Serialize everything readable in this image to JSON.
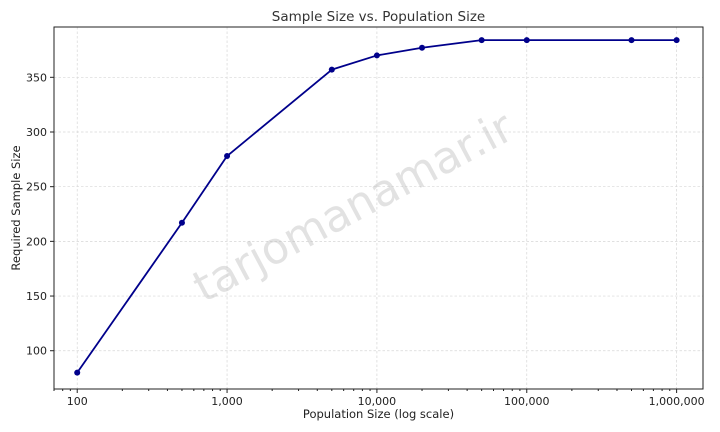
{
  "chart_data": {
    "type": "line",
    "title": "Sample Size vs. Population Size",
    "xlabel": "Population Size (log scale)",
    "ylabel": "Required Sample Size",
    "x_scale": "log",
    "xlim": [
      70,
      1500000
    ],
    "ylim": [
      65,
      396
    ],
    "grid": true,
    "x": [
      100,
      500,
      1000,
      5000,
      10000,
      20000,
      50000,
      100000,
      500000,
      1000000
    ],
    "series": [
      {
        "values": [
          80,
          217,
          278,
          357,
          370,
          377,
          384,
          384,
          384,
          384
        ],
        "color": "#00008b"
      }
    ],
    "x_ticks": [
      100,
      1000,
      10000,
      100000,
      1000000
    ],
    "x_tick_labels": [
      "100",
      "1,000",
      "10,000",
      "100,000",
      "1,000,000"
    ],
    "y_ticks": [
      100,
      150,
      200,
      250,
      300,
      350
    ],
    "y_tick_labels": [
      "100",
      "150",
      "200",
      "250",
      "300",
      "350"
    ]
  },
  "watermark": "tarjomanamar.ir"
}
